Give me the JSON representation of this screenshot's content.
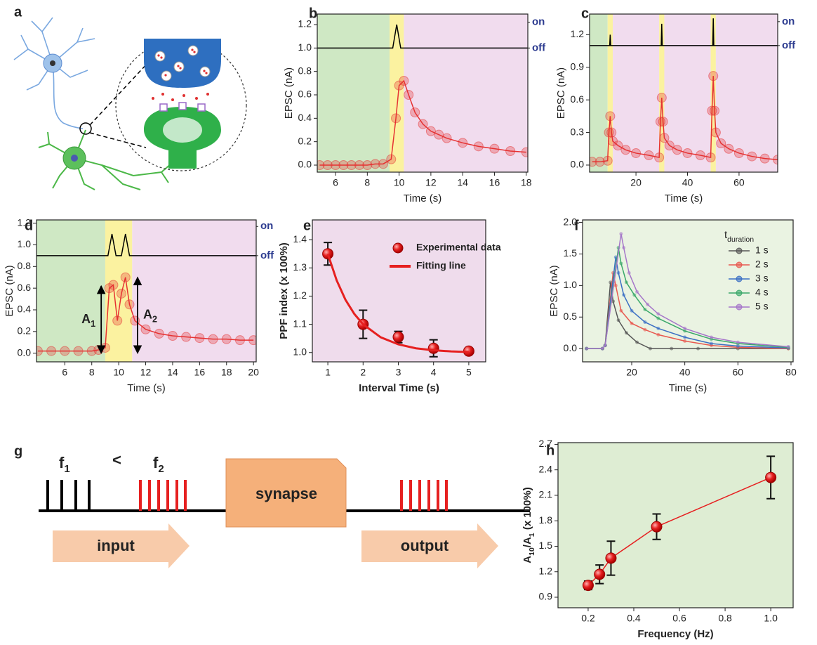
{
  "diagram_a": {
    "panel": "a"
  },
  "diagram_g": {
    "panel": "g",
    "f1": [
      "f",
      "1"
    ],
    "relation": "<",
    "f2": [
      "f",
      "2"
    ],
    "synapse_label": "synapse",
    "input_label": "input",
    "output_label": "output"
  },
  "chart_data": [
    {
      "type": "line",
      "panel": "b",
      "xlabel": "Time (s)",
      "ylabel": "EPSC (nA)",
      "xlim": [
        4.85,
        18.1
      ],
      "ylim": [
        -0.06,
        1.29
      ],
      "xticks": [
        6,
        8,
        10,
        12,
        14,
        16,
        18
      ],
      "yticks": [
        {
          "value": 0,
          "label": "0.0"
        },
        0.2,
        0.4,
        0.6,
        0.8,
        {
          "value": 1,
          "label": "1.0"
        },
        1.2
      ],
      "y2lim": [
        -0.06,
        1.29
      ],
      "y2ticks": [
        {
          "value": 1.22,
          "label": "on"
        },
        {
          "value": 1.0,
          "label": "off"
        }
      ],
      "regions": [
        {
          "x": [
            4.85,
            9.4
          ],
          "color": "#cfe8c4"
        },
        {
          "x": [
            9.4,
            10.3
          ],
          "color": "#fbf2a0"
        },
        {
          "x": [
            10.3,
            18.1
          ],
          "color": "#f1dcee"
        }
      ],
      "series": [
        {
          "color": "#000000",
          "marker": "none",
          "line": true,
          "x": [
            4.85,
            9.6,
            9.85,
            10.1,
            18.1
          ],
          "values": [
            1.0,
            1.0,
            1.2,
            1.0,
            1.0
          ]
        },
        {
          "color": "#e63232",
          "marker": "open",
          "line": true,
          "x": [
            5,
            5.5,
            6,
            6.5,
            7,
            7.5,
            8,
            8.5,
            9,
            9.5,
            9.8,
            10,
            10.3,
            10.6,
            11,
            11.5,
            12,
            12.5,
            13,
            14,
            15,
            16,
            17,
            18
          ],
          "values": [
            0,
            0,
            0,
            0,
            0,
            0,
            0,
            0.01,
            0.01,
            0.05,
            0.4,
            0.68,
            0.72,
            0.6,
            0.45,
            0.35,
            0.29,
            0.26,
            0.23,
            0.19,
            0.16,
            0.14,
            0.12,
            0.11
          ]
        }
      ]
    },
    {
      "type": "line",
      "panel": "c",
      "xlabel": "Time (s)",
      "ylabel": "EPSC (nA)",
      "xlim": [
        2,
        75
      ],
      "ylim": [
        -0.065,
        1.39
      ],
      "xticks": [
        20,
        40,
        60
      ],
      "yticks": [
        {
          "value": 0,
          "label": "0.0"
        },
        0.3,
        0.6,
        0.9,
        1.2
      ],
      "y2lim": [
        -0.065,
        1.39
      ],
      "y2ticks": [
        {
          "value": 1.32,
          "label": "on"
        },
        {
          "value": 1.1,
          "label": "off"
        }
      ],
      "regions": [
        {
          "x": [
            2,
            9
          ],
          "color": "#cfe8c4"
        },
        {
          "x": [
            9,
            11
          ],
          "color": "#fbf2a0"
        },
        {
          "x": [
            11,
            29
          ],
          "color": "#f1dcee"
        },
        {
          "x": [
            29,
            31
          ],
          "color": "#fbf2a0"
        },
        {
          "x": [
            31,
            49
          ],
          "color": "#f1dcee"
        },
        {
          "x": [
            49,
            51
          ],
          "color": "#fbf2a0"
        },
        {
          "x": [
            51,
            75
          ],
          "color": "#f1dcee"
        }
      ],
      "series": [
        {
          "color": "#000000",
          "marker": "none",
          "line": true,
          "x": [
            2,
            9.8,
            10,
            10.2,
            29.8,
            30,
            30.2,
            49.8,
            50,
            50.2,
            75
          ],
          "values": [
            1.1,
            1.1,
            1.2,
            1.1,
            1.1,
            1.3,
            1.1,
            1.1,
            1.35,
            1.1,
            1.1
          ]
        },
        {
          "color": "#e63232",
          "marker": "open",
          "line": true,
          "x": [
            3,
            6,
            9,
            9.5,
            10,
            10.5,
            11,
            13,
            16,
            20,
            25,
            29,
            29.5,
            30,
            30.5,
            31,
            33,
            36,
            40,
            45,
            49,
            49.5,
            50,
            50.5,
            51,
            53,
            56,
            60,
            65,
            70,
            75
          ],
          "values": [
            0.03,
            0.03,
            0.04,
            0.3,
            0.45,
            0.3,
            0.22,
            0.18,
            0.14,
            0.11,
            0.09,
            0.07,
            0.4,
            0.62,
            0.4,
            0.25,
            0.18,
            0.14,
            0.11,
            0.09,
            0.07,
            0.5,
            0.82,
            0.5,
            0.3,
            0.2,
            0.15,
            0.11,
            0.08,
            0.06,
            0.05
          ]
        }
      ]
    },
    {
      "type": "line",
      "panel": "d",
      "xlabel": "Time (s)",
      "ylabel": "EPSC (nA)",
      "xlim": [
        3.9,
        20.2
      ],
      "ylim": [
        -0.08,
        1.23
      ],
      "xticks": [
        6,
        8,
        10,
        12,
        14,
        16,
        18,
        20
      ],
      "yticks": [
        {
          "value": 0,
          "label": "0.0"
        },
        0.2,
        0.4,
        0.6,
        0.8,
        {
          "value": 1,
          "label": "1.0"
        },
        1.2
      ],
      "y2lim": [
        -0.08,
        1.23
      ],
      "y2ticks": [
        {
          "value": 1.17,
          "label": "on"
        },
        {
          "value": 0.9,
          "label": "off"
        }
      ],
      "regions": [
        {
          "x": [
            3.9,
            9
          ],
          "color": "#cfe8c4"
        },
        {
          "x": [
            9,
            11
          ],
          "color": "#fbf2a0"
        },
        {
          "x": [
            11,
            20.2
          ],
          "color": "#f1dcee"
        }
      ],
      "series": [
        {
          "color": "#000000",
          "marker": "none",
          "line": true,
          "x": [
            3.9,
            9.2,
            9.5,
            9.8,
            10.2,
            10.5,
            10.8,
            20.2
          ],
          "values": [
            0.9,
            0.9,
            1.1,
            0.9,
            0.9,
            1.1,
            0.9,
            0.9
          ]
        },
        {
          "color": "#e63232",
          "marker": "open",
          "line": true,
          "x": [
            4,
            5,
            6,
            7,
            8,
            8.5,
            9,
            9.3,
            9.6,
            9.9,
            10.2,
            10.5,
            10.8,
            11.2,
            12,
            13,
            14,
            15,
            16,
            17,
            18,
            19,
            20
          ],
          "values": [
            0.02,
            0.02,
            0.02,
            0.02,
            0.02,
            0.03,
            0.05,
            0.6,
            0.63,
            0.3,
            0.55,
            0.7,
            0.45,
            0.3,
            0.22,
            0.18,
            0.16,
            0.15,
            0.14,
            0.13,
            0.13,
            0.12,
            0.12
          ]
        }
      ],
      "annotations": [
        {
          "label": [
            "A",
            "1"
          ],
          "x": 8.7,
          "from": 0,
          "to": 0.62
        },
        {
          "label": [
            "A",
            "2"
          ],
          "x": 11.4,
          "from": 0,
          "to": 0.7
        }
      ]
    },
    {
      "type": "line",
      "panel": "e",
      "xlabel": "Interval Time (s)",
      "ylabel": "PPF index (x 100%)",
      "background": "#efdcec",
      "xlim": [
        0.56,
        5.48
      ],
      "ylim": [
        0.967,
        1.47
      ],
      "xticks": [
        1,
        2,
        3,
        4,
        5
      ],
      "yticks": [
        {
          "value": 1,
          "label": "1.0"
        },
        1.1,
        1.2,
        1.3,
        1.4
      ],
      "series": [
        {
          "name": "Experimental data",
          "color": "#e62020",
          "marker": "ball",
          "line": false,
          "x": [
            1,
            2,
            3,
            4,
            5
          ],
          "values": [
            1.35,
            1.1,
            1.055,
            1.015,
            1.005
          ],
          "errors": [
            0.04,
            0.05,
            0.02,
            0.03,
            0.01
          ]
        },
        {
          "name": "Fitting line",
          "color": "#e62020",
          "marker": "none",
          "line": true,
          "x": [
            1,
            1.25,
            1.5,
            1.75,
            2,
            2.5,
            3,
            3.5,
            4,
            4.5,
            5
          ],
          "values": [
            1.349,
            1.256,
            1.187,
            1.137,
            1.1,
            1.054,
            1.029,
            1.015,
            1.008,
            1.004,
            1.002
          ]
        }
      ]
    },
    {
      "type": "line",
      "panel": "f",
      "xlabel": "Time (s)",
      "ylabel": "EPSC (nA)",
      "background": "#eaf3e2",
      "legend_title": [
        "t",
        "duration"
      ],
      "xlim": [
        1.5,
        80.8
      ],
      "ylim": [
        -0.21,
        2.04
      ],
      "xticks": [
        20,
        40,
        60,
        80
      ],
      "yticks": [
        {
          "value": 0,
          "label": "0.0"
        },
        0.5,
        {
          "value": 1,
          "label": "1.0"
        },
        1.5,
        {
          "value": 2,
          "label": "2.0"
        }
      ],
      "series": [
        {
          "name": "1 s",
          "color": "#555555",
          "marker": "small",
          "line": true,
          "x": [
            3,
            9,
            10,
            12,
            13,
            15,
            18,
            22,
            27,
            35,
            45,
            60,
            79
          ],
          "values": [
            0,
            0,
            0.05,
            1.05,
            0.75,
            0.45,
            0.25,
            0.1,
            0,
            0,
            0,
            0,
            0
          ]
        },
        {
          "name": "2 s",
          "color": "#e8584f",
          "marker": "small",
          "line": true,
          "x": [
            3,
            9,
            10,
            13,
            14,
            16,
            20,
            25,
            30,
            40,
            50,
            60,
            79
          ],
          "values": [
            0,
            0,
            0.05,
            1.2,
            1.0,
            0.6,
            0.4,
            0.3,
            0.22,
            0.12,
            0.05,
            0.02,
            0
          ]
        },
        {
          "name": "3 s",
          "color": "#3b6fc4",
          "marker": "small",
          "line": true,
          "x": [
            3,
            9,
            10,
            14,
            15,
            17,
            20,
            25,
            30,
            40,
            50,
            60,
            79
          ],
          "values": [
            0,
            0,
            0.05,
            1.45,
            1.2,
            0.85,
            0.6,
            0.42,
            0.32,
            0.18,
            0.08,
            0.04,
            0.01
          ]
        },
        {
          "name": "4 s",
          "color": "#3aa86a",
          "marker": "small",
          "line": true,
          "x": [
            3,
            9,
            10,
            15,
            16,
            18,
            21,
            25,
            30,
            40,
            50,
            60,
            79
          ],
          "values": [
            0,
            0,
            0.05,
            1.6,
            1.35,
            1.05,
            0.85,
            0.62,
            0.48,
            0.28,
            0.15,
            0.08,
            0.02
          ]
        },
        {
          "name": "5 s",
          "color": "#a576c9",
          "marker": "small",
          "line": true,
          "x": [
            3,
            9,
            10,
            16,
            17,
            19,
            22,
            26,
            30,
            40,
            50,
            60,
            79
          ],
          "values": [
            0,
            0,
            0.05,
            1.82,
            1.6,
            1.2,
            0.9,
            0.7,
            0.55,
            0.32,
            0.18,
            0.1,
            0.03
          ]
        }
      ]
    },
    {
      "type": "line",
      "panel": "h",
      "xlabel": "Frequency (Hz)",
      "ylabel": [
        "A",
        "10",
        "/A",
        "1",
        " (x 100%)"
      ],
      "background": "#deedd3",
      "xlim": [
        0.068,
        1.098
      ],
      "ylim": [
        0.776,
        2.72
      ],
      "xticks": [
        0.2,
        0.4,
        0.6,
        0.8,
        {
          "value": 1,
          "label": "1.0"
        }
      ],
      "yticks": [
        0.9,
        1.2,
        1.5,
        1.8,
        2.1,
        2.4,
        2.7
      ],
      "series": [
        {
          "color": "#e62020",
          "marker": "ball",
          "line": true,
          "x": [
            0.2,
            0.25,
            0.3,
            0.5,
            1.0
          ],
          "values": [
            1.04,
            1.17,
            1.36,
            1.73,
            2.31
          ],
          "errors": [
            0.05,
            0.11,
            0.2,
            0.15,
            0.25
          ]
        }
      ]
    }
  ]
}
